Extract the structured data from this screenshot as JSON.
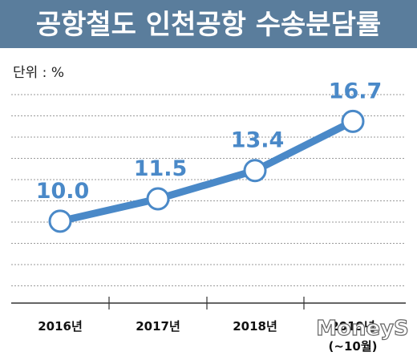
{
  "chart_data": {
    "type": "line",
    "title": "공항철도 인천공항 수송분담률",
    "unit_label": "단위 : %",
    "categories": [
      "2016년",
      "2017년",
      "2018년",
      "2019년"
    ],
    "category_notes": [
      "",
      "",
      "",
      "(~10월)"
    ],
    "values": [
      10.0,
      11.5,
      13.4,
      16.7
    ],
    "value_labels": [
      "10.0",
      "11.5",
      "13.4",
      "16.7"
    ],
    "ylim": [
      4.5,
      18.5
    ],
    "grid": true,
    "colors": {
      "title_bar": "#5a7d9c",
      "line": "#4a89c8",
      "marker_fill": "#ffffff",
      "axis": "#333333"
    }
  },
  "watermark": "MoneyS"
}
